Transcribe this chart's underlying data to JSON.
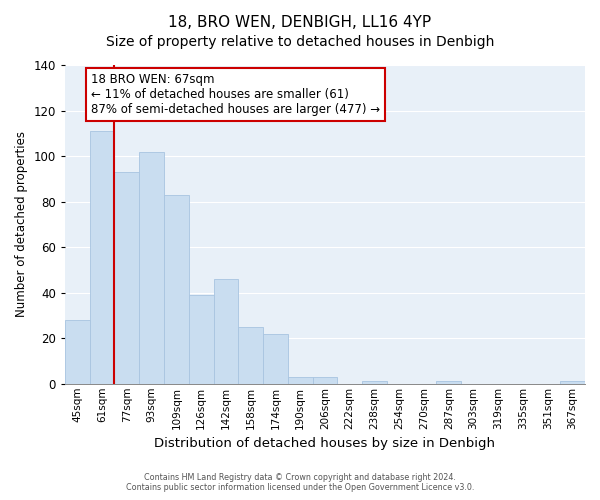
{
  "title": "18, BRO WEN, DENBIGH, LL16 4YP",
  "subtitle": "Size of property relative to detached houses in Denbigh",
  "xlabel": "Distribution of detached houses by size in Denbigh",
  "ylabel": "Number of detached properties",
  "bar_labels": [
    "45sqm",
    "61sqm",
    "77sqm",
    "93sqm",
    "109sqm",
    "126sqm",
    "142sqm",
    "158sqm",
    "174sqm",
    "190sqm",
    "206sqm",
    "222sqm",
    "238sqm",
    "254sqm",
    "270sqm",
    "287sqm",
    "303sqm",
    "319sqm",
    "335sqm",
    "351sqm",
    "367sqm"
  ],
  "bar_values": [
    28,
    111,
    93,
    102,
    83,
    39,
    46,
    25,
    22,
    3,
    3,
    0,
    1,
    0,
    0,
    1,
    0,
    0,
    0,
    0,
    1
  ],
  "bar_color": "#c9ddf0",
  "bar_edge_color": "#a8c4e0",
  "red_line_bar_index": 1,
  "ylim": [
    0,
    140
  ],
  "yticks": [
    0,
    20,
    40,
    60,
    80,
    100,
    120,
    140
  ],
  "annotation_title": "18 BRO WEN: 67sqm",
  "annotation_line1": "← 11% of detached houses are smaller (61)",
  "annotation_line2": "87% of semi-detached houses are larger (477) →",
  "annotation_box_color": "#ffffff",
  "annotation_box_edge": "#cc0000",
  "red_line_color": "#cc0000",
  "footer_line1": "Contains HM Land Registry data © Crown copyright and database right 2024.",
  "footer_line2": "Contains public sector information licensed under the Open Government Licence v3.0.",
  "plot_bg_color": "#e8f0f8",
  "fig_bg_color": "#ffffff",
  "grid_color": "#ffffff",
  "title_fontsize": 11,
  "subtitle_fontsize": 10
}
